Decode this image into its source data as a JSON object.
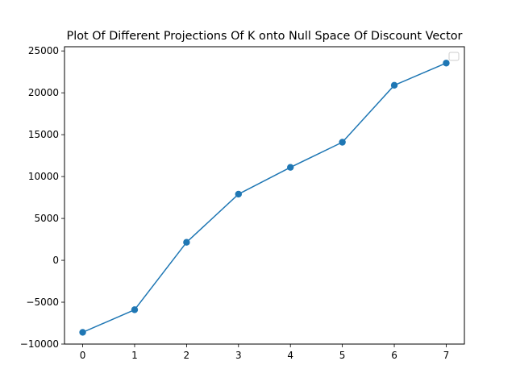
{
  "chart_data": {
    "type": "line",
    "title": "Plot Of Different Projections Of K onto Null Space Of Discount Vector",
    "xlabel": "",
    "ylabel": "",
    "x": [
      0,
      1,
      2,
      3,
      4,
      5,
      6,
      7
    ],
    "series": [
      {
        "values": [
          -8600,
          -5900,
          2150,
          7900,
          11100,
          14100,
          20900,
          23550
        ],
        "color": "#1f77b4",
        "marker": "circle"
      }
    ],
    "xlim": [
      -0.35,
      7.35
    ],
    "ylim": [
      -10000,
      25500
    ],
    "xticks": [
      0,
      1,
      2,
      3,
      4,
      5,
      6,
      7
    ],
    "yticks": [
      -10000,
      -5000,
      0,
      5000,
      10000,
      15000,
      20000,
      25000
    ],
    "grid": false,
    "legend": {
      "placement": "top-right",
      "entries": []
    }
  }
}
